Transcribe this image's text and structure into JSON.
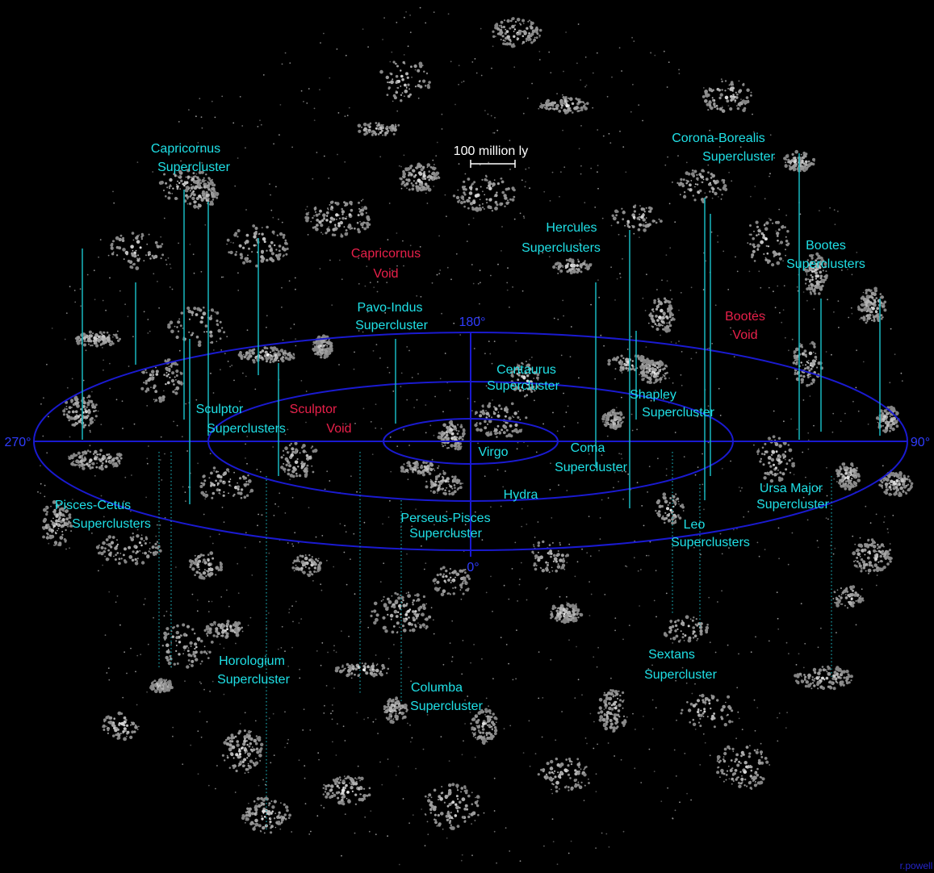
{
  "scale_label": "100 million ly",
  "degrees": {
    "d180": "180°",
    "d270": "270°",
    "d90": "90°",
    "d0": "0°"
  },
  "superclusters": [
    {
      "lines": [
        "Capricornus",
        "Supercluster"
      ]
    },
    {
      "lines": [
        "Corona-Borealis",
        "Supercluster"
      ]
    },
    {
      "lines": [
        "Hercules",
        "Superclusters"
      ]
    },
    {
      "lines": [
        "Bootes",
        "Superclusters"
      ]
    },
    {
      "lines": [
        "Pavo-Indus",
        "Supercluster"
      ]
    },
    {
      "lines": [
        "Centaurus",
        "Supercluster"
      ]
    },
    {
      "lines": [
        "Shapley",
        "Supercluster"
      ]
    },
    {
      "lines": [
        "Sculptor",
        "Superclusters"
      ]
    },
    {
      "lines": [
        "Virgo"
      ]
    },
    {
      "lines": [
        "Coma",
        "Supercluster"
      ]
    },
    {
      "lines": [
        "Ursa Major",
        "Supercluster"
      ]
    },
    {
      "lines": [
        "Hydra"
      ]
    },
    {
      "lines": [
        "Pisces-Cetus",
        "Superclusters"
      ]
    },
    {
      "lines": [
        "Perseus-Pisces",
        "Supercluster"
      ]
    },
    {
      "lines": [
        "Leo",
        "Superclusters"
      ]
    },
    {
      "lines": [
        "Sextans",
        "Supercluster"
      ]
    },
    {
      "lines": [
        "Horologium",
        "Supercluster"
      ]
    },
    {
      "lines": [
        "Columba",
        "Supercluster"
      ]
    }
  ],
  "voids": [
    {
      "lines": [
        "Capricornus",
        "Void"
      ]
    },
    {
      "lines": [
        "Bootes",
        "Void"
      ]
    },
    {
      "lines": [
        "Sculptor",
        "Void"
      ]
    }
  ],
  "credit": "r.powell"
}
